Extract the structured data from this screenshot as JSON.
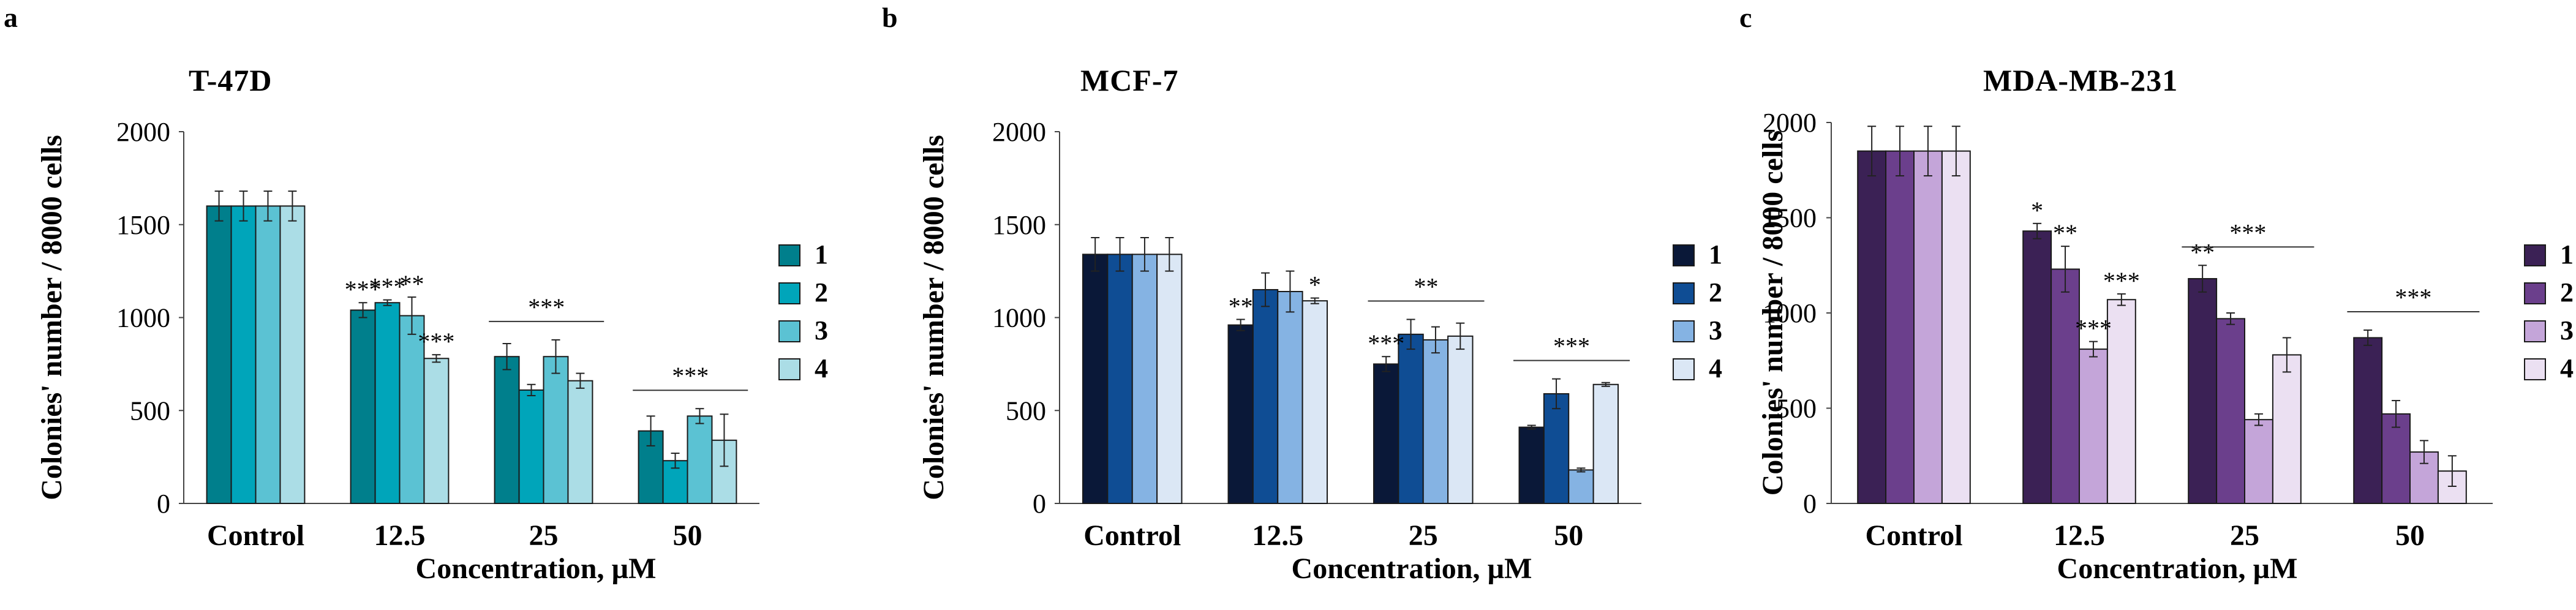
{
  "chart_data": [
    {
      "panel": "a",
      "type": "bar",
      "title": "T-47D",
      "xlabel": "Concentration, µM",
      "ylabel": "Colonies' number / 8000 cells",
      "ylim": [
        0,
        2000
      ],
      "yticks": [
        "0",
        "500",
        "1000",
        "1500",
        "2000"
      ],
      "categories": [
        "Control",
        "12.5",
        "25",
        "50"
      ],
      "colors": [
        "#007f8c",
        "#00a5ba",
        "#5bc2d3",
        "#abdde6"
      ],
      "series": [
        {
          "name": "1",
          "values": [
            1600,
            1040,
            790,
            390
          ],
          "errors": [
            80,
            40,
            70,
            80
          ]
        },
        {
          "name": "2",
          "values": [
            1600,
            1080,
            610,
            230
          ],
          "errors": [
            80,
            15,
            30,
            40
          ]
        },
        {
          "name": "3",
          "values": [
            1600,
            1010,
            790,
            470
          ],
          "errors": [
            80,
            100,
            90,
            40
          ]
        },
        {
          "name": "4",
          "values": [
            1600,
            780,
            660,
            340
          ],
          "errors": [
            80,
            20,
            40,
            140
          ]
        }
      ],
      "annotations": [
        {
          "text": "***",
          "category": 1,
          "series": 0
        },
        {
          "text": "***",
          "category": 1,
          "series": 1
        },
        {
          "text": "**",
          "category": 1,
          "series": 2
        },
        {
          "text": "***",
          "category": 1,
          "series": 3
        },
        {
          "text": "***",
          "category": 2,
          "group": true
        },
        {
          "text": "***",
          "category": 3,
          "group": true
        }
      ]
    },
    {
      "panel": "b",
      "type": "bar",
      "title": "MCF-7",
      "xlabel": "Concentration, µM",
      "ylabel": "Colonies' number / 8000 cells",
      "ylim": [
        0,
        2000
      ],
      "yticks": [
        "0",
        "500",
        "1000",
        "1500",
        "2000"
      ],
      "categories": [
        "Control",
        "12.5",
        "25",
        "50"
      ],
      "colors": [
        "#0a1838",
        "#0f4d94",
        "#85b3e3",
        "#dbe7f5"
      ],
      "series": [
        {
          "name": "1",
          "values": [
            1340,
            960,
            750,
            410
          ],
          "errors": [
            90,
            30,
            40,
            10
          ]
        },
        {
          "name": "2",
          "values": [
            1340,
            1150,
            910,
            590
          ],
          "errors": [
            90,
            90,
            80,
            80
          ]
        },
        {
          "name": "3",
          "values": [
            1340,
            1140,
            880,
            180
          ],
          "errors": [
            90,
            110,
            70,
            10
          ]
        },
        {
          "name": "4",
          "values": [
            1340,
            1090,
            900,
            640
          ],
          "errors": [
            90,
            15,
            70,
            10
          ]
        }
      ],
      "annotations": [
        {
          "text": "**",
          "category": 1,
          "series": 0
        },
        {
          "text": "*",
          "category": 1,
          "series": 3
        },
        {
          "text": "***",
          "category": 2,
          "series": 0
        },
        {
          "text": "**",
          "category": 2,
          "group": true
        },
        {
          "text": "***",
          "category": 3,
          "group": true
        }
      ]
    },
    {
      "panel": "c",
      "type": "bar",
      "title": "MDA-MB-231",
      "xlabel": "Concentration, µM",
      "ylabel": "Colonies' number / 8000 cells",
      "ylim": [
        0,
        2000
      ],
      "yticks": [
        "0",
        "500",
        "1000",
        "1500",
        "2000"
      ],
      "categories": [
        "Control",
        "12.5",
        "25",
        "50"
      ],
      "colors": [
        "#3b2155",
        "#6b3f8c",
        "#c4a5d9",
        "#ebe0f2"
      ],
      "series": [
        {
          "name": "1",
          "values": [
            1850,
            1430,
            1180,
            870
          ],
          "errors": [
            130,
            40,
            70,
            40
          ]
        },
        {
          "name": "2",
          "values": [
            1850,
            1230,
            970,
            470
          ],
          "errors": [
            130,
            120,
            30,
            70
          ]
        },
        {
          "name": "3",
          "values": [
            1850,
            810,
            440,
            270
          ],
          "errors": [
            130,
            40,
            30,
            60
          ]
        },
        {
          "name": "4",
          "values": [
            1850,
            1070,
            780,
            170
          ],
          "errors": [
            130,
            30,
            90,
            80
          ]
        }
      ],
      "annotations": [
        {
          "text": "*",
          "category": 1,
          "series": 0
        },
        {
          "text": "**",
          "category": 1,
          "series": 1
        },
        {
          "text": "***",
          "category": 1,
          "series": 2
        },
        {
          "text": "***",
          "category": 1,
          "series": 3
        },
        {
          "text": "**",
          "category": 2,
          "series": 0
        },
        {
          "text": "***",
          "category": 2,
          "group": true
        },
        {
          "text": "***",
          "category": 3,
          "group": true
        }
      ]
    }
  ]
}
